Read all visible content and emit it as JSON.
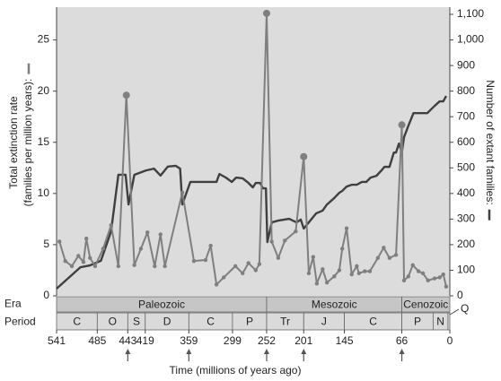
{
  "chart_data": {
    "type": "line",
    "xlabel": "Time (millions of years ago)",
    "ylabel": [
      "Total extinction rate",
      "(families per million years):"
    ],
    "y2label": "Number of extant families:",
    "xlim": [
      541,
      0
    ],
    "xticks": [
      541,
      485,
      443,
      419,
      359,
      299,
      252,
      201,
      145,
      66,
      0
    ],
    "ylim": [
      0,
      28.2
    ],
    "yticks": [
      0,
      5,
      10,
      15,
      20,
      25
    ],
    "y2lim": [
      0,
      1128
    ],
    "y2ticks": [
      0,
      100,
      200,
      300,
      400,
      500,
      600,
      700,
      800,
      900,
      {
        "value": 1000,
        "label": "1,000"
      },
      {
        "value": 1100,
        "label": "1,100"
      }
    ],
    "arrows": [
      443,
      359,
      252,
      201,
      66
    ],
    "series": [
      {
        "color": "#7f7f7f",
        "markers": true,
        "x": [
          537,
          529,
          520,
          511,
          504,
          500,
          495,
          488,
          477,
          466,
          456,
          445,
          434,
          425,
          416,
          406,
          398,
          392,
          368,
          352,
          336,
          329,
          321,
          311,
          295,
          285,
          277,
          267,
          262,
          252,
          245,
          236,
          227,
          212,
          201,
          194,
          188,
          183,
          175,
          169,
          159,
          152,
          148,
          142,
          135,
          128,
          125,
          117,
          110,
          99,
          91,
          83,
          74,
          66,
          63,
          57,
          51,
          43,
          37,
          30,
          21,
          14,
          9,
          5
        ],
        "values": [
          5.3,
          3.4,
          2.9,
          3.9,
          3.3,
          5.6,
          3.7,
          2.9,
          4.6,
          6.9,
          2.9,
          19.6,
          3.0,
          4.6,
          6.2,
          2.9,
          6.0,
          2.9,
          10.1,
          3.4,
          3.5,
          4.9,
          1.1,
          1.8,
          2.9,
          2.2,
          3.2,
          2.5,
          3.1,
          27.6,
          5.3,
          3.7,
          5.4,
          6.3,
          13.6,
          2.2,
          3.8,
          1.2,
          2.6,
          1.3,
          1.9,
          2.5,
          4.6,
          6.6,
          2.1,
          2.9,
          2.2,
          2.4,
          2.4,
          3.7,
          4.7,
          3.7,
          4.0,
          16.7,
          1.5,
          1.9,
          3.0,
          2.4,
          2.2,
          1.5,
          1.7,
          1.8,
          2.1,
          0.9
        ]
      },
      {
        "color": "#3f3f3f",
        "axis": "y2",
        "markers": false,
        "x": [
          541,
          508,
          495,
          480,
          466,
          456,
          446,
          442,
          434,
          418,
          407,
          398,
          388,
          377,
          371,
          368,
          357,
          336,
          321,
          317,
          308,
          300,
          294,
          285,
          277,
          271,
          267,
          261,
          257,
          253,
          251,
          245,
          236,
          221,
          211,
          205,
          201,
          194,
          184,
          175,
          169,
          159,
          152,
          148,
          142,
          135,
          128,
          121,
          115,
          109,
          101,
          94,
          90,
          83,
          77,
          74,
          70,
          66,
          63,
          57,
          50,
          38,
          31,
          21,
          14,
          9,
          5
        ],
        "values": [
          28,
          112,
          119,
          137,
          252,
          473,
          473,
          357,
          473,
          490,
          497,
          470,
          505,
          508,
          497,
          357,
          445,
          445,
          445,
          476,
          462,
          445,
          462,
          459,
          441,
          424,
          441,
          441,
          420,
          420,
          210,
          287,
          294,
          301,
          287,
          298,
          263,
          287,
          322,
          333,
          357,
          382,
          403,
          410,
          427,
          434,
          434,
          445,
          445,
          462,
          469,
          490,
          504,
          504,
          560,
          560,
          595,
          560,
          620,
          665,
          714,
          714,
          714,
          742,
          760,
          760,
          781
        ]
      }
    ],
    "era_label": "Era",
    "eras": [
      {
        "name": "Paleozoic",
        "start": 541,
        "end": 252
      },
      {
        "name": "Mesozoic",
        "start": 252,
        "end": 66
      },
      {
        "name": "Cenozoic",
        "start": 66,
        "end": 0
      }
    ],
    "period_label": "Period",
    "periods": [
      {
        "name": "C",
        "start": 541,
        "end": 485
      },
      {
        "name": "O",
        "start": 485,
        "end": 443
      },
      {
        "name": "S",
        "start": 443,
        "end": 419
      },
      {
        "name": "D",
        "start": 419,
        "end": 359
      },
      {
        "name": "C",
        "start": 359,
        "end": 299
      },
      {
        "name": "P",
        "start": 299,
        "end": 252
      },
      {
        "name": "Tr",
        "start": 252,
        "end": 201
      },
      {
        "name": "J",
        "start": 201,
        "end": 145
      },
      {
        "name": "C",
        "start": 145,
        "end": 66
      },
      {
        "name": "P",
        "start": 66,
        "end": 23
      },
      {
        "name": "N",
        "start": 23,
        "end": 2.6
      },
      {
        "name": "Q",
        "start": 2.6,
        "end": 0
      }
    ]
  }
}
